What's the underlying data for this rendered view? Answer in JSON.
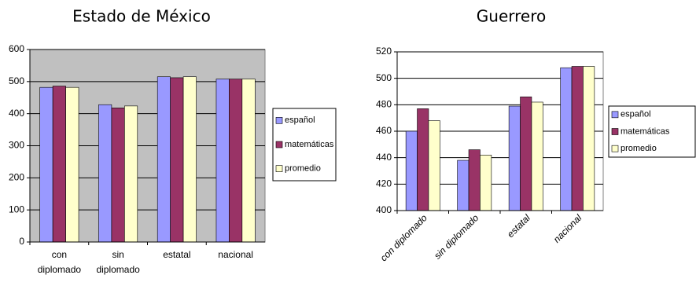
{
  "chart_data": [
    {
      "type": "bar",
      "title": "Estado de México",
      "categories": [
        "con diplomado",
        "sin diplomado",
        "estatal",
        "nacional"
      ],
      "series": [
        {
          "name": "español",
          "color": "#9999ff",
          "values": [
            482,
            428,
            515,
            508
          ]
        },
        {
          "name": "matemáticas",
          "color": "#993366",
          "values": [
            486,
            418,
            512,
            508
          ]
        },
        {
          "name": "promedio",
          "color": "#ffffcc",
          "values": [
            482,
            424,
            515,
            508
          ]
        }
      ],
      "ylim": [
        0,
        600
      ],
      "yticks": [
        0,
        100,
        200,
        300,
        400,
        500,
        600
      ],
      "grid": true,
      "plot_color": "#c0c0c0",
      "legend": "right",
      "x_label_rotation": 0
    },
    {
      "type": "bar",
      "title": "Guerrero",
      "categories": [
        "con diplomado",
        "sin diplomado",
        "estatal",
        "nacional"
      ],
      "series": [
        {
          "name": "español",
          "color": "#9999ff",
          "values": [
            460,
            438,
            479,
            508
          ]
        },
        {
          "name": "matemáticas",
          "color": "#993366",
          "values": [
            477,
            446,
            486,
            509
          ]
        },
        {
          "name": "promedio",
          "color": "#ffffcc",
          "values": [
            468,
            442,
            482,
            509
          ]
        }
      ],
      "ylim": [
        400,
        520
      ],
      "yticks": [
        400,
        420,
        440,
        460,
        480,
        500,
        520
      ],
      "grid": true,
      "plot_color": "#ffffff",
      "legend": "right",
      "x_label_rotation": -45
    }
  ]
}
